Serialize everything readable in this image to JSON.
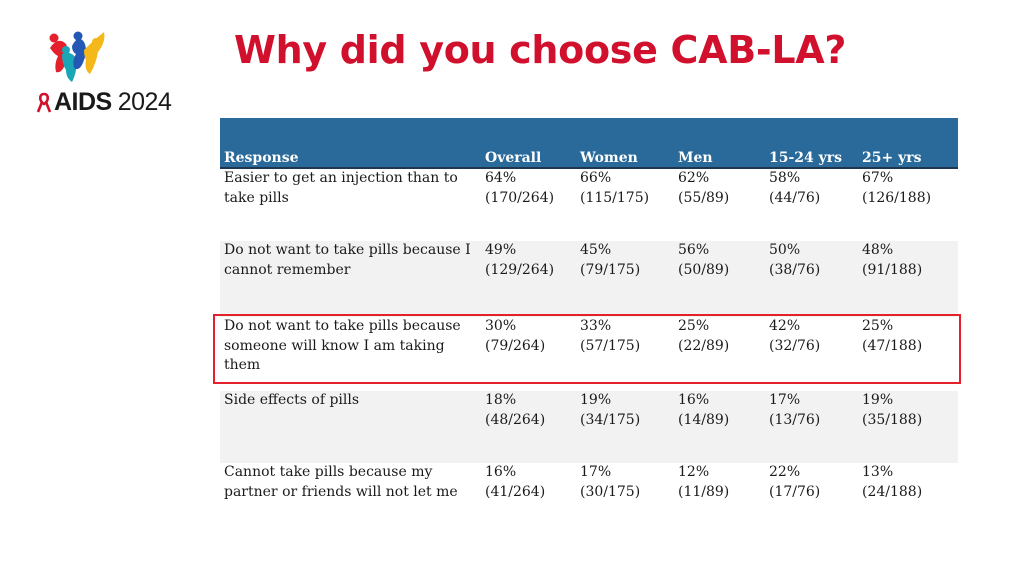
{
  "logo": {
    "brand": "AIDS",
    "year": "2024"
  },
  "title": "Why did you choose CAB-LA?",
  "colors": {
    "title": "#d0102c",
    "header_bg": "#2a6a9a",
    "highlight": "#e3202c"
  },
  "table": {
    "headers": [
      "Response",
      "Overall",
      "Women",
      "Men",
      "15-24 yrs",
      "25+ yrs"
    ],
    "rows": [
      {
        "response": "Easier to get an injection than to take pills",
        "overall": "64% (170/264)",
        "women": "66% (115/175)",
        "men": "62% (55/89)",
        "age_15_24": "58% (44/76)",
        "age_25_plus": "67% (126/188)"
      },
      {
        "response": "Do not want to take pills because I cannot remember",
        "overall": "49% (129/264)",
        "women": "45% (79/175)",
        "men": "56% (50/89)",
        "age_15_24": "50% (38/76)",
        "age_25_plus": "48% (91/188)"
      },
      {
        "response": "Do not want to take pills because someone will know I am taking them",
        "overall": "30% (79/264)",
        "women": "33% (57/175)",
        "men": "25% (22/89)",
        "age_15_24": "42% (32/76)",
        "age_25_plus": "25% (47/188)"
      },
      {
        "response": "Side effects of pills",
        "overall": "18% (48/264)",
        "women": "19% (34/175)",
        "men": "16% (14/89)",
        "age_15_24": "17% (13/76)",
        "age_25_plus": "19% (35/188)"
      },
      {
        "response": "Cannot take pills because my partner or friends will not let me",
        "overall": "16% (41/264)",
        "women": "17% (30/175)",
        "men": "12% (11/89)",
        "age_15_24": "22% (17/76)",
        "age_25_plus": "13% (24/188)"
      }
    ]
  }
}
